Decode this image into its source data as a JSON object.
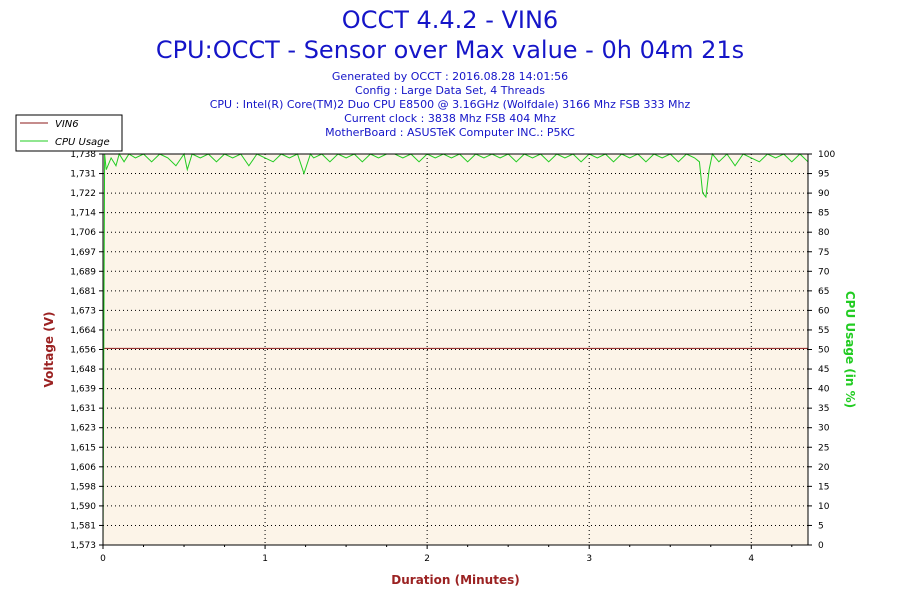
{
  "header": {
    "title": "OCCT 4.4.2 - VIN6",
    "subtitle": "CPU:OCCT - Sensor over Max value - 0h 04m 21s",
    "info_lines": [
      "Generated by OCCT : 2016.08.28 14:01:56",
      "Config : Large Data Set, 4 Threads",
      "CPU : Intel(R) Core(TM)2 Duo CPU E8500 @ 3.16GHz (Wolfdale) 3166 Mhz FSB 333 Mhz",
      "Current clock : 3838 Mhz FSB 404 Mhz",
      "MotherBoard : ASUSTeK Computer INC.: P5KC"
    ]
  },
  "colors": {
    "vin6": "#8b1a1a",
    "cpu_usage": "#22cc22",
    "plot_bg": "#fcf4e8",
    "title": "#1515c8",
    "axis_title_left": "#9b2222",
    "axis_title_bottom": "#9b2222",
    "axis_title_right": "#22cc22"
  },
  "chart_data": {
    "type": "line",
    "xlabel": "Duration (Minutes)",
    "ylabel": "Voltage (V)",
    "y2label": "CPU Usage (in %)",
    "xlim": [
      0,
      4.35
    ],
    "ylim": [
      1.573,
      1.738
    ],
    "y2lim": [
      0,
      100
    ],
    "x_ticks": [
      "0",
      "1",
      "2",
      "3",
      "4"
    ],
    "x_tick_values": [
      0,
      1,
      2,
      3,
      4
    ],
    "y_ticks": [
      "1,738",
      "1,731",
      "1,722",
      "1,714",
      "1,706",
      "1,697",
      "1,689",
      "1,681",
      "1,673",
      "1,664",
      "1,656",
      "1,648",
      "1,639",
      "1,631",
      "1,623",
      "1,615",
      "1,606",
      "1,598",
      "1,590",
      "1,581",
      "1,573"
    ],
    "y2_ticks": [
      "100",
      "95",
      "90",
      "85",
      "80",
      "75",
      "70",
      "65",
      "60",
      "55",
      "50",
      "45",
      "40",
      "35",
      "30",
      "25",
      "20",
      "15",
      "10",
      "5",
      "0"
    ],
    "grid": true,
    "legend_position": "top-left",
    "series": [
      {
        "name": "VIN6",
        "axis": "left",
        "x": [
          0,
          4.35
        ],
        "y": [
          1.656,
          1.656
        ]
      },
      {
        "name": "CPU Usage",
        "axis": "right",
        "x": [
          0,
          0.01,
          0.02,
          0.05,
          0.08,
          0.1,
          0.13,
          0.16,
          0.2,
          0.25,
          0.3,
          0.35,
          0.4,
          0.45,
          0.5,
          0.52,
          0.55,
          0.6,
          0.65,
          0.7,
          0.75,
          0.8,
          0.85,
          0.9,
          0.95,
          1.0,
          1.05,
          1.1,
          1.15,
          1.2,
          1.24,
          1.28,
          1.3,
          1.35,
          1.4,
          1.45,
          1.5,
          1.55,
          1.6,
          1.65,
          1.7,
          1.75,
          1.8,
          1.85,
          1.9,
          1.95,
          2.0,
          2.05,
          2.1,
          2.15,
          2.2,
          2.25,
          2.3,
          2.35,
          2.4,
          2.45,
          2.5,
          2.55,
          2.6,
          2.65,
          2.7,
          2.75,
          2.8,
          2.85,
          2.9,
          2.95,
          3.0,
          3.05,
          3.1,
          3.15,
          3.2,
          3.25,
          3.3,
          3.35,
          3.4,
          3.45,
          3.5,
          3.55,
          3.6,
          3.65,
          3.68,
          3.7,
          3.72,
          3.74,
          3.76,
          3.8,
          3.85,
          3.9,
          3.95,
          4.0,
          4.05,
          4.1,
          4.15,
          4.2,
          4.25,
          4.3,
          4.35
        ],
        "y": [
          0,
          100,
          96,
          99,
          97,
          100,
          98,
          100,
          99,
          100,
          98,
          100,
          99,
          97,
          100,
          96,
          100,
          99,
          100,
          98,
          100,
          99,
          100,
          97,
          100,
          99,
          98,
          100,
          99,
          100,
          95,
          100,
          99,
          100,
          98,
          100,
          99,
          100,
          98,
          100,
          99,
          100,
          100,
          99,
          100,
          98,
          100,
          99,
          100,
          99,
          100,
          98,
          100,
          99,
          100,
          99,
          100,
          98,
          100,
          99,
          100,
          98,
          100,
          99,
          100,
          98,
          100,
          99,
          100,
          98,
          100,
          99,
          100,
          98,
          100,
          99,
          100,
          98,
          100,
          99,
          98,
          90,
          89,
          96,
          100,
          98,
          100,
          97,
          100,
          99,
          98,
          100,
          99,
          100,
          98,
          100,
          98
        ]
      }
    ]
  }
}
